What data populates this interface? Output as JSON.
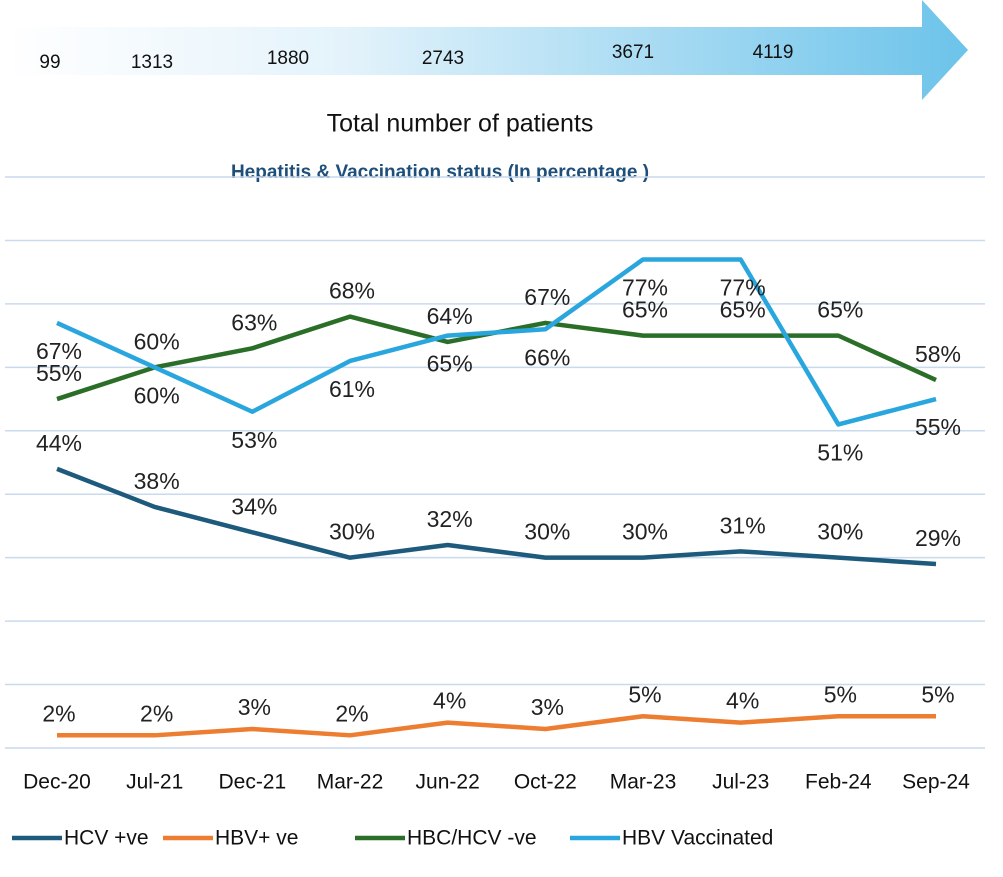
{
  "banner": {
    "values": [
      99,
      1313,
      1880,
      2743,
      3671,
      4119
    ],
    "caption": "Total number of patients"
  },
  "chart_data": {
    "type": "line",
    "title": "Hepatitis & Vaccination status (In percentage )",
    "categories": [
      "Dec-20",
      "Jul-21",
      "Dec-21",
      "Mar-22",
      "Jun-22",
      "Oct-22",
      "Mar-23",
      "Jul-23",
      "Feb-24",
      "Sep-24"
    ],
    "series": [
      {
        "name": "HCV +ve",
        "color": "#1d5a7c",
        "values": [
          44,
          38,
          34,
          30,
          32,
          30,
          30,
          31,
          30,
          29
        ],
        "value_labels": [
          "44%",
          "38%",
          "34%",
          "30%",
          "32%",
          "30%",
          "30%",
          "31%",
          "30%",
          "29%"
        ]
      },
      {
        "name": "HBV+ ve",
        "color": "#ed7d31",
        "values": [
          2,
          2,
          3,
          2,
          4,
          3,
          5,
          4,
          5,
          5
        ],
        "value_labels": [
          "2%",
          "2%",
          "3%",
          "2%",
          "4%",
          "3%",
          "5%",
          "4%",
          "5%",
          "5%"
        ]
      },
      {
        "name": "HBC/HCV -ve",
        "color": "#2a6e27",
        "values": [
          55,
          60,
          63,
          68,
          64,
          67,
          65,
          65,
          65,
          58
        ],
        "value_labels": [
          "55%",
          "60%",
          "63%",
          "68%",
          "64%",
          "67%",
          "65%",
          "65%",
          "65%",
          "58%"
        ]
      },
      {
        "name": "HBV Vaccinated",
        "color": "#2aa6de",
        "values": [
          67,
          60,
          53,
          61,
          65,
          66,
          77,
          77,
          51,
          55
        ],
        "value_labels": [
          "67%",
          "60%",
          "53%",
          "61%",
          "65%",
          "66%",
          "77%",
          "77%",
          "51%",
          "55%"
        ]
      }
    ],
    "ylim": [
      0,
      90
    ],
    "yticks": [
      0,
      10,
      20,
      30,
      40,
      50,
      60,
      70,
      80,
      90
    ],
    "grid": true,
    "legend": "bottom"
  }
}
